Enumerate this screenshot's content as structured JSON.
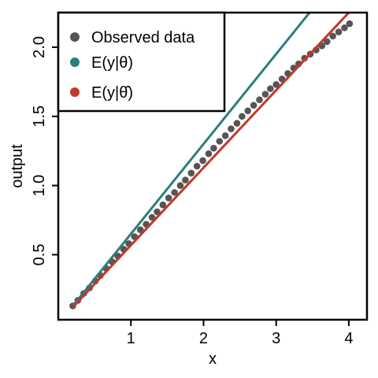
{
  "chart_data": {
    "type": "scatter",
    "title": "",
    "xlabel": "x",
    "ylabel": "output",
    "xlim": [
      0.0,
      4.25
    ],
    "ylim": [
      0.03,
      2.25
    ],
    "x_ticks": [
      {
        "value": 1,
        "label": "1"
      },
      {
        "value": 2,
        "label": "2"
      },
      {
        "value": 3,
        "label": "3"
      },
      {
        "value": 4,
        "label": "4"
      }
    ],
    "y_ticks": [
      {
        "value": 0.5,
        "label": "0.5"
      },
      {
        "value": 1.0,
        "label": "1.0"
      },
      {
        "value": 1.5,
        "label": "1.5"
      },
      {
        "value": 2.0,
        "label": "2.0"
      }
    ],
    "grid": false,
    "legend_position": "top-left",
    "series": [
      {
        "name": "Observed data",
        "kind": "points",
        "color": "#555555",
        "x": [
          0.2,
          0.27,
          0.35,
          0.43,
          0.51,
          0.58,
          0.66,
          0.74,
          0.82,
          0.9,
          0.97,
          1.05,
          1.13,
          1.21,
          1.29,
          1.36,
          1.44,
          1.52,
          1.6,
          1.68,
          1.75,
          1.83,
          1.91,
          1.99,
          2.07,
          2.14,
          2.22,
          2.3,
          2.38,
          2.46,
          2.53,
          2.61,
          2.69,
          2.77,
          2.85,
          2.92,
          3.0,
          3.08,
          3.16,
          3.24,
          3.31,
          3.39,
          3.47,
          3.55,
          3.63,
          3.7,
          3.78,
          3.86,
          3.94,
          4.01
        ],
        "y": [
          0.13,
          0.17,
          0.22,
          0.26,
          0.31,
          0.35,
          0.4,
          0.45,
          0.49,
          0.54,
          0.58,
          0.63,
          0.68,
          0.72,
          0.77,
          0.81,
          0.86,
          0.91,
          0.95,
          1.0,
          1.04,
          1.09,
          1.14,
          1.18,
          1.23,
          1.27,
          1.32,
          1.36,
          1.41,
          1.45,
          1.5,
          1.54,
          1.58,
          1.62,
          1.66,
          1.7,
          1.73,
          1.77,
          1.81,
          1.85,
          1.88,
          1.92,
          1.95,
          1.98,
          2.01,
          2.04,
          2.08,
          2.11,
          2.14,
          2.17
        ]
      },
      {
        "name": "E(y|θ)",
        "kind": "line",
        "color": "#2e7d7d",
        "x": [
          0.2,
          3.46
        ],
        "y": [
          0.13,
          2.25
        ]
      },
      {
        "name": "E(y|θ̂)",
        "kind": "line",
        "color": "#c0392b",
        "x": [
          0.2,
          4.0
        ],
        "y": [
          0.12,
          2.25
        ]
      }
    ]
  }
}
